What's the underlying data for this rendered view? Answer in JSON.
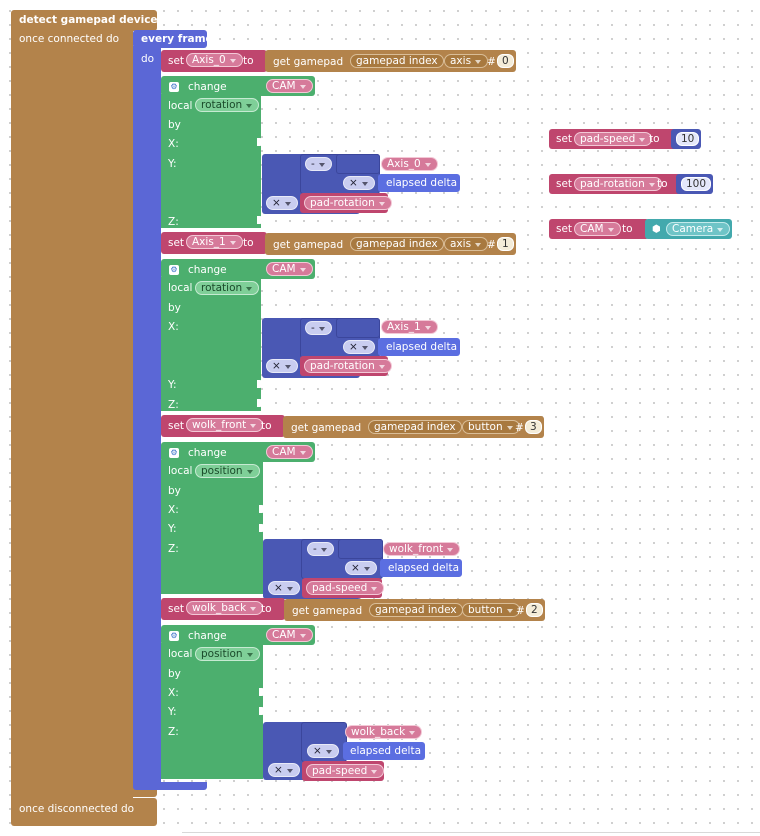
{
  "event": {
    "title": "detect gamepad device",
    "connected": "once connected do",
    "disconnected": "once disconnected do"
  },
  "frame": {
    "title": "every frame",
    "do": "do"
  },
  "common": {
    "set": "set",
    "to": "to",
    "get_gamepad": "get gamepad",
    "gamepad_index": "gamepad index",
    "hash": "#",
    "change": "change",
    "local": "local",
    "by": "by",
    "x": "X:",
    "y": "Y:",
    "z": "Z:",
    "cam": "CAM",
    "elapsed_delta": "elapsed delta",
    "minus": "-",
    "times": "×"
  },
  "blocks": [
    {
      "var": "Axis_0",
      "kind": "axis",
      "index": "0",
      "target": "CAM",
      "local": "rotation",
      "src_var": "Axis_0",
      "factor": "pad-rotation"
    },
    {
      "var": "Axis_1",
      "kind": "axis",
      "index": "1",
      "target": "CAM",
      "local": "rotation",
      "src_var": "Axis_1",
      "factor": "pad-rotation"
    },
    {
      "var": "wolk_front",
      "kind": "button",
      "index": "3",
      "target": "CAM",
      "local": "position",
      "src_var": "wolk_front",
      "factor": "pad-speed"
    },
    {
      "var": "wolk_back",
      "kind": "button",
      "index": "2",
      "target": "CAM",
      "local": "position",
      "src_var": "wolk_back",
      "factor": "pad-speed"
    }
  ],
  "floating": [
    {
      "var": "pad-speed",
      "value": "10"
    },
    {
      "var": "pad-rotation",
      "value": "100"
    },
    {
      "var": "CAM",
      "value": "Camera"
    }
  ],
  "colors": {
    "event": "#b3834b",
    "loop": "#5b67d6",
    "variable": "#bf466e",
    "transform": "#4caf6e",
    "math": "#4a58b4",
    "scene": "#43a9ad"
  },
  "icons": {
    "change": "gear-icon",
    "camera": "cube-icon"
  }
}
